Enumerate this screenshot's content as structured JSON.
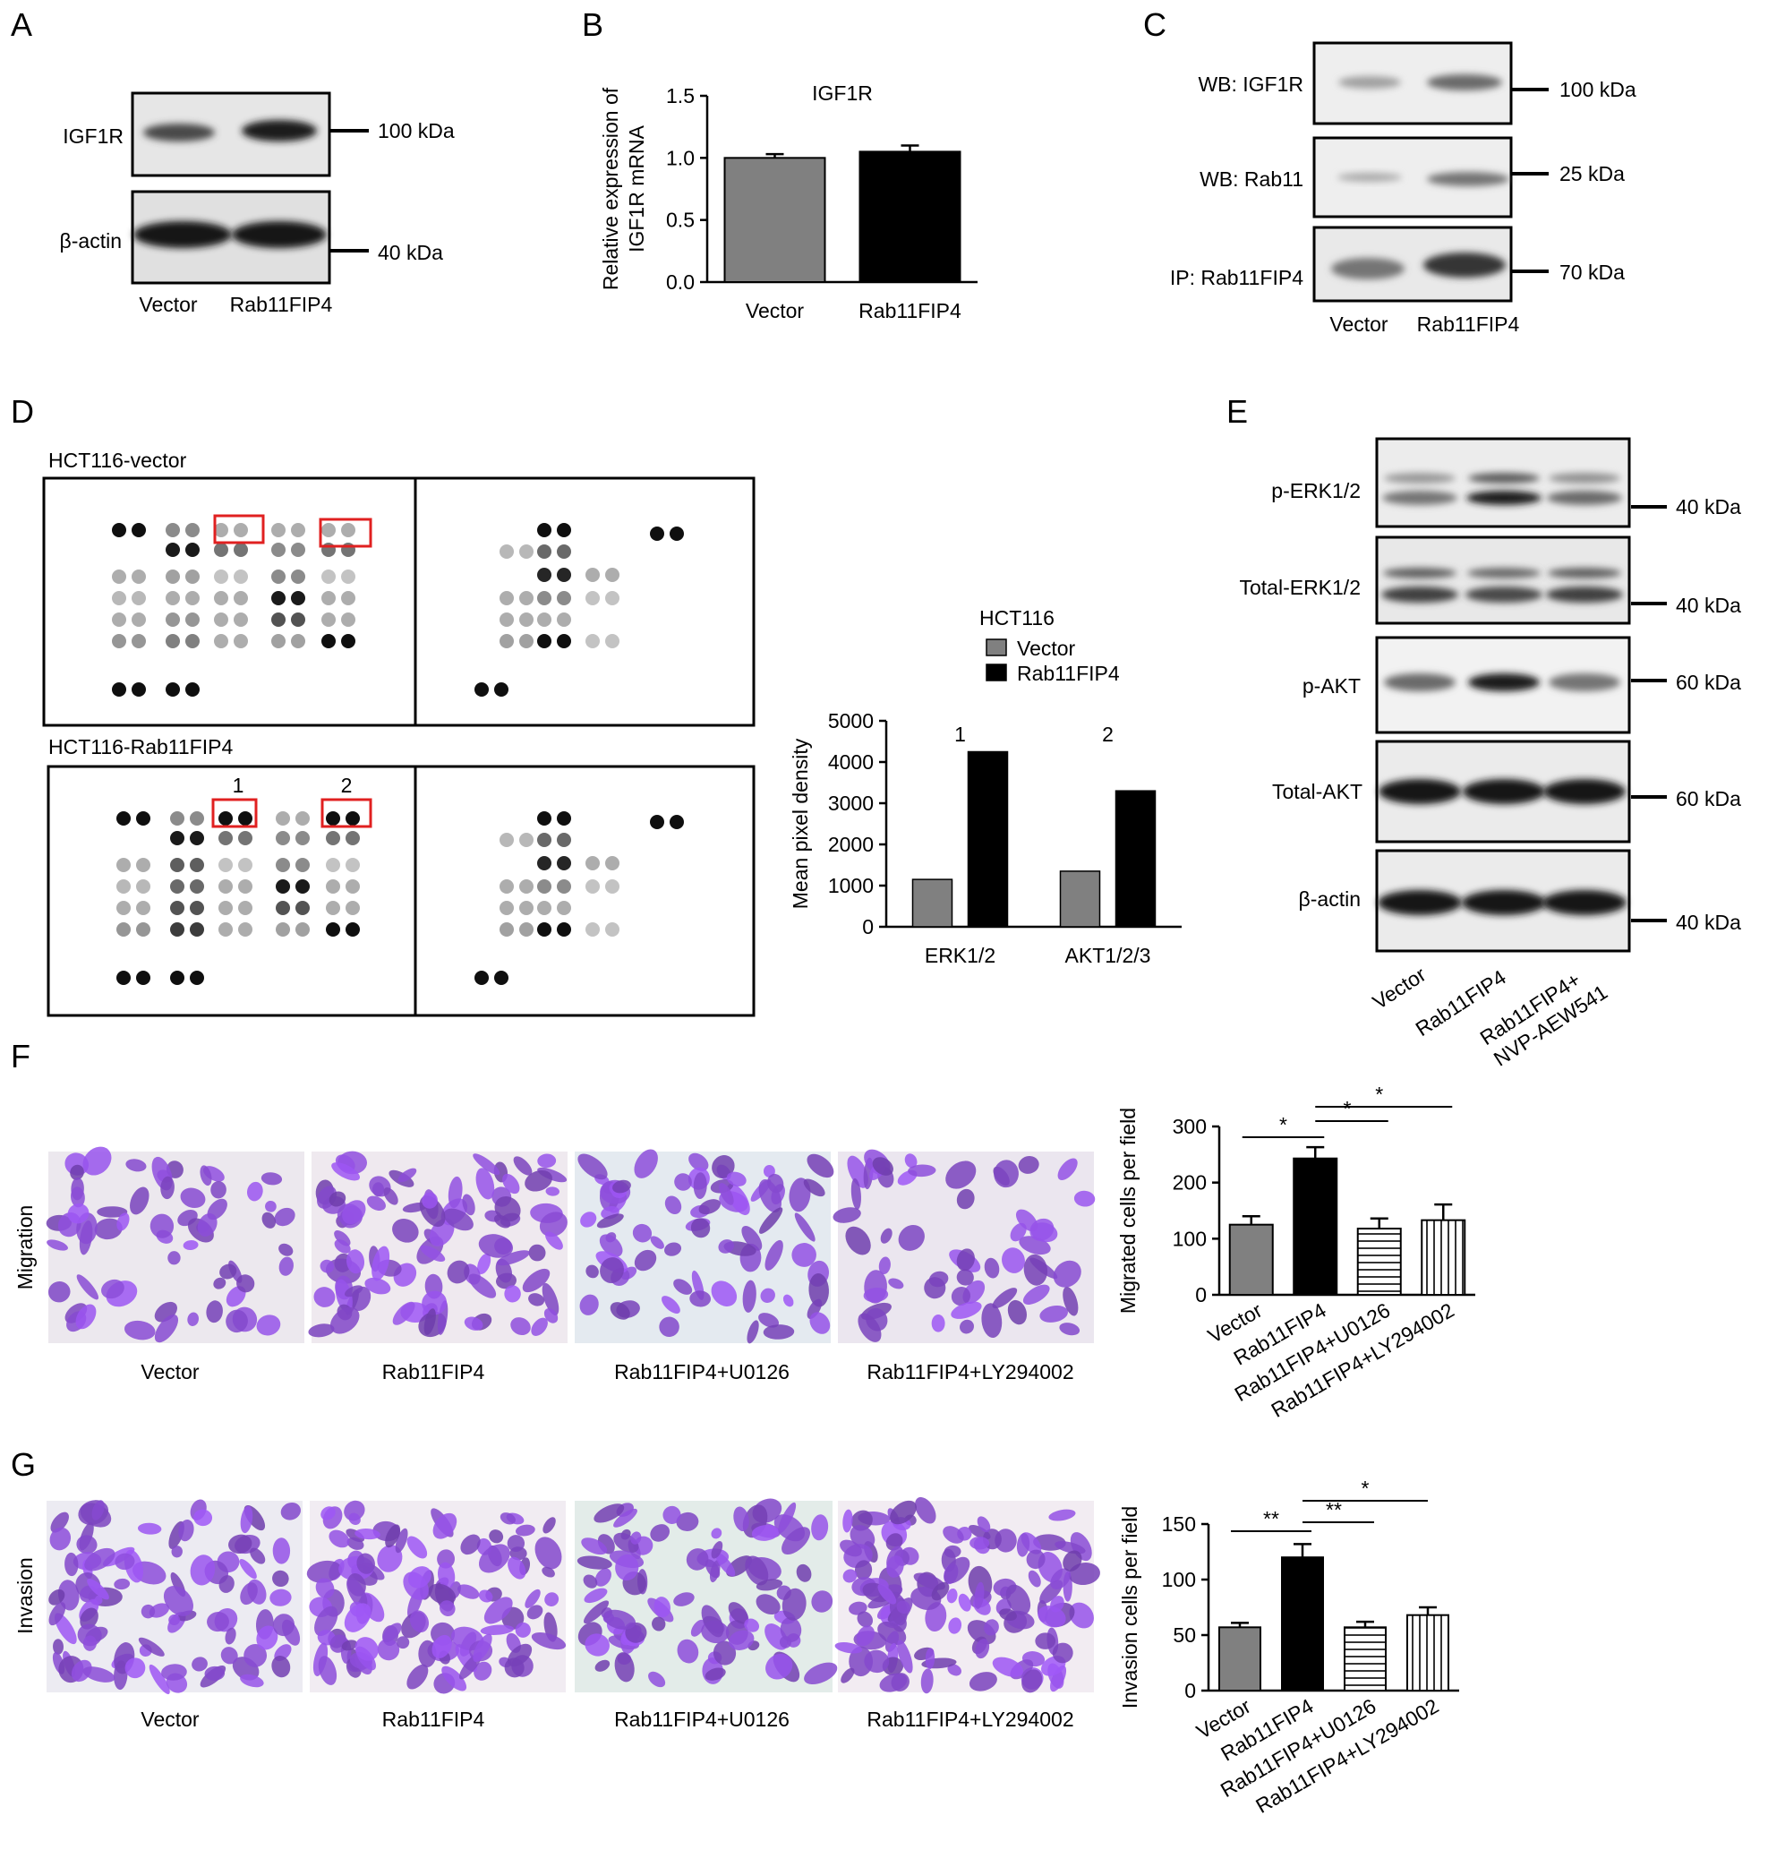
{
  "panel_letters": [
    "A",
    "B",
    "C",
    "D",
    "E",
    "F",
    "G"
  ],
  "panelA": {
    "blots": [
      {
        "label": "IGF1R",
        "marker": "100 kDa",
        "bands": [
          0.75,
          0.95
        ]
      },
      {
        "label": "β-actin",
        "marker": "40 kDa",
        "bands": [
          1.0,
          1.0
        ]
      }
    ],
    "lanes": [
      "Vector",
      "Rab11FIP4"
    ]
  },
  "panelC": {
    "blots": [
      {
        "label": "WB: IGF1R",
        "marker": "100 kDa",
        "bands": [
          0.35,
          0.6
        ]
      },
      {
        "label": "WB: Rab11",
        "marker": "25 kDa",
        "bands": [
          0.3,
          0.55
        ]
      },
      {
        "label": "IP: Rab11FIP4",
        "marker": "70 kDa",
        "bands": [
          0.55,
          0.85
        ]
      }
    ],
    "lanes": [
      "Vector",
      "Rab11FIP4"
    ]
  },
  "panelD": {
    "row_labels": [
      "HCT116-vector",
      "HCT116-Rab11FIP4"
    ],
    "box_labels": [
      "1",
      "2"
    ]
  },
  "panelE": {
    "blots": [
      {
        "label": "p-ERK1/2",
        "marker": "40 kDa",
        "bands": [
          0.55,
          0.95,
          0.6
        ]
      },
      {
        "label": "Total-ERK1/2",
        "marker": "40 kDa",
        "bands": [
          0.8,
          0.75,
          0.8
        ]
      },
      {
        "label": "p-AKT",
        "marker": "60 kDa",
        "bands": [
          0.6,
          0.95,
          0.55
        ]
      },
      {
        "label": "Total-AKT",
        "marker": "60 kDa",
        "bands": [
          1.0,
          1.0,
          1.0
        ]
      },
      {
        "label": "β-actin",
        "marker": "40 kDa",
        "bands": [
          1.0,
          1.0,
          1.0
        ]
      }
    ],
    "lanes": [
      "Vector",
      "Rab11FIP4",
      "Rab11FIP4+\nNVP-AEW541"
    ]
  },
  "micrographs": {
    "rows": [
      {
        "label": "Migration",
        "captions": [
          "Vector",
          "Rab11FIP4",
          "Rab11FIP4+U0126",
          "Rab11FIP4+LY294002"
        ]
      },
      {
        "label": "Invasion",
        "captions": [
          "Vector",
          "Rab11FIP4",
          "Rab11FIP4+U0126",
          "Rab11FIP4+LY294002"
        ]
      }
    ]
  },
  "chart_data": [
    {
      "panel": "B",
      "type": "bar",
      "title": "IGF1R",
      "categories": [
        "Vector",
        "Rab11FIP4"
      ],
      "values": [
        1.0,
        1.05
      ],
      "errors": [
        0.03,
        0.05
      ],
      "ylabel": "Relative expression of\nIGF1R mRNA",
      "ylim": [
        0,
        1.5
      ],
      "yticks": [
        "0.0",
        "0.5",
        "1.0",
        "1.5"
      ],
      "colors": [
        "#808080",
        "#000000"
      ]
    },
    {
      "panel": "D",
      "type": "bar",
      "legend_title": "HCT116",
      "categories": [
        "ERK1/2",
        "AKT1/2/3"
      ],
      "category_annotations": [
        "1",
        "2"
      ],
      "series": [
        {
          "name": "Vector",
          "values": [
            1150,
            1350
          ],
          "color": "#808080"
        },
        {
          "name": "Rab11FIP4",
          "values": [
            4250,
            3300
          ],
          "color": "#000000"
        }
      ],
      "ylabel": "Mean pixel density",
      "ylim": [
        0,
        5000
      ],
      "yticks": [
        "0",
        "1000",
        "2000",
        "3000",
        "4000",
        "5000"
      ],
      "legend": "top"
    },
    {
      "panel": "F",
      "type": "bar",
      "categories": [
        "Vector",
        "Rab11FIP4",
        "Rab11FIP4+U0126",
        "Rab11FIP4+LY294002"
      ],
      "values": [
        125,
        243,
        118,
        133
      ],
      "errors": [
        15,
        20,
        18,
        28
      ],
      "ylabel": "Migrated cells per field",
      "ylim": [
        0,
        300
      ],
      "yticks": [
        "0",
        "100",
        "200",
        "300"
      ],
      "significance": [
        {
          "from": 0,
          "to": 1,
          "label": "*"
        },
        {
          "from": 1,
          "to": 2,
          "label": "*"
        },
        {
          "from": 1,
          "to": 3,
          "label": "*"
        }
      ]
    },
    {
      "panel": "G",
      "type": "bar",
      "categories": [
        "Vector",
        "Rab11FIP4",
        "Rab11FIP4+U0126",
        "Rab11FIP4+LY294002"
      ],
      "values": [
        57,
        120,
        57,
        68
      ],
      "errors": [
        4,
        12,
        5,
        7
      ],
      "ylabel": "Invasion cells per field",
      "ylim": [
        0,
        150
      ],
      "yticks": [
        "0",
        "50",
        "100",
        "150"
      ],
      "significance": [
        {
          "from": 0,
          "to": 1,
          "label": "**"
        },
        {
          "from": 1,
          "to": 2,
          "label": "**"
        },
        {
          "from": 1,
          "to": 3,
          "label": "*"
        }
      ]
    }
  ]
}
